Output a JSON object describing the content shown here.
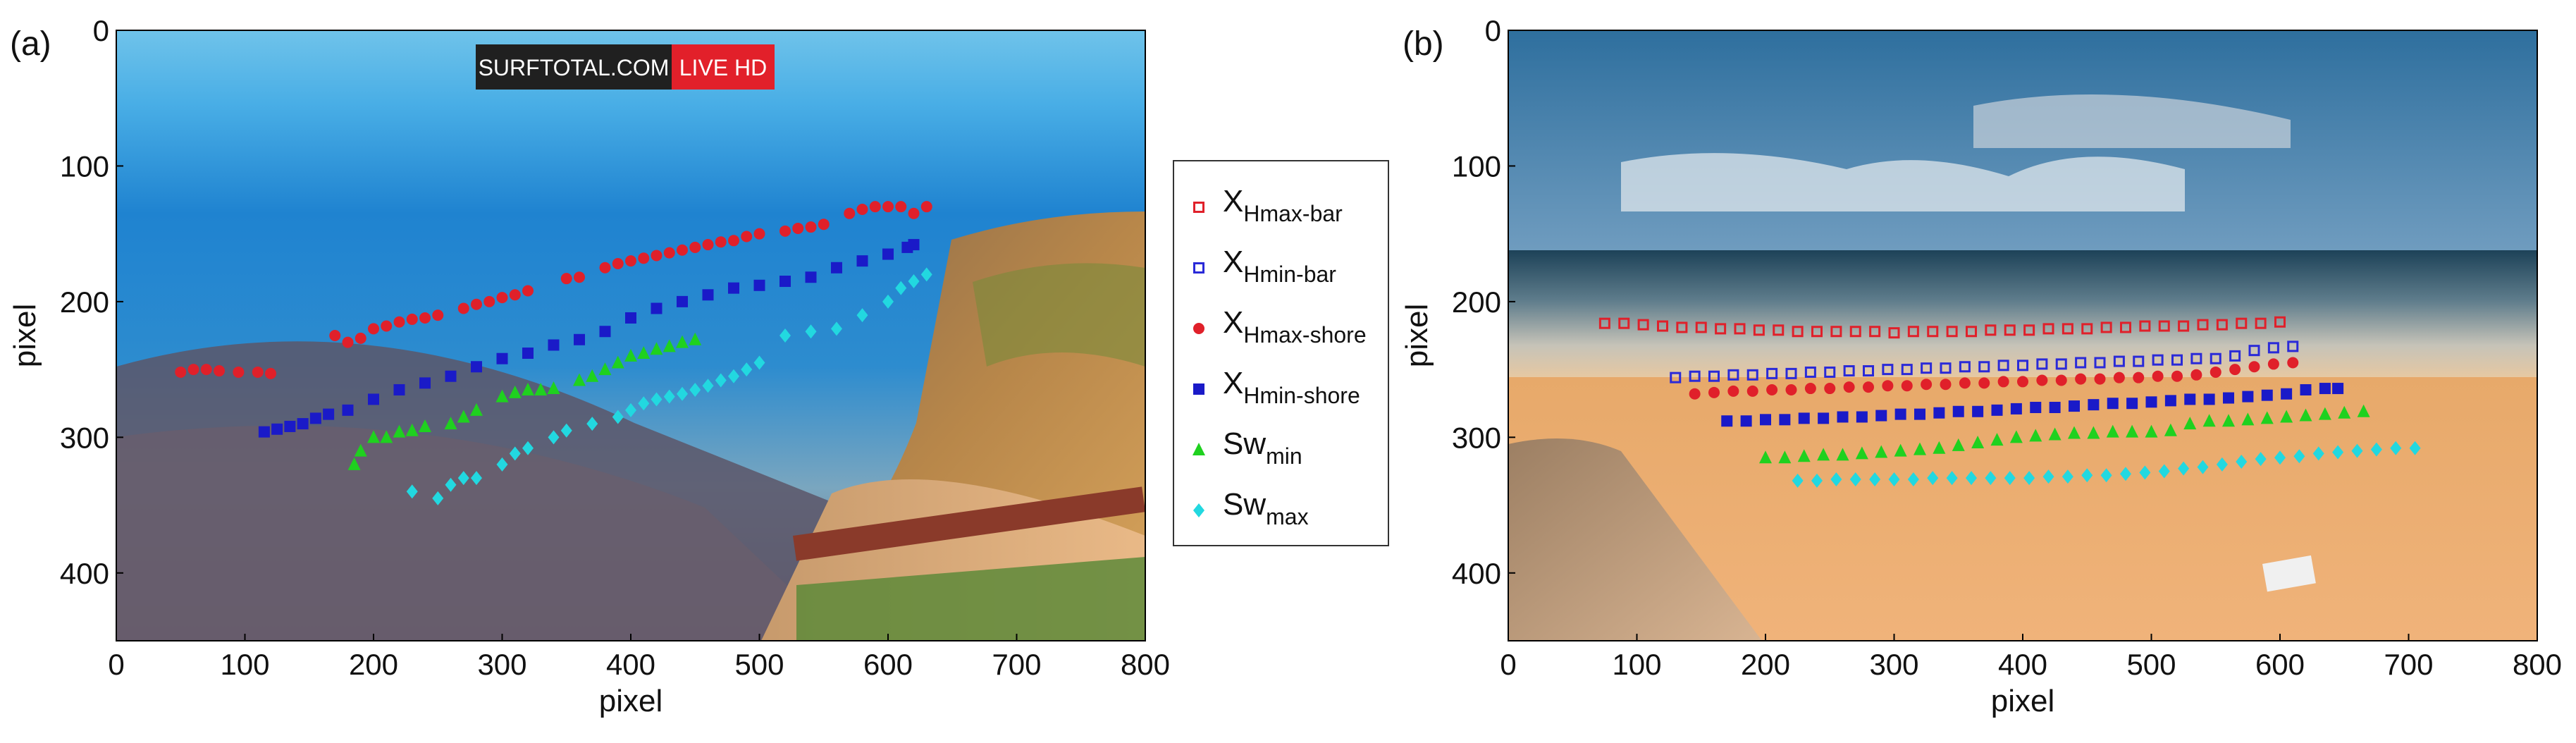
{
  "figure": {
    "panels": [
      "(a)",
      "(b)"
    ],
    "watermark_left": "SURFTOTAL.COM",
    "watermark_right": "LIVE HD"
  },
  "legend": [
    {
      "id": "xhmax_bar",
      "base": "X",
      "sub": "Hmax-bar",
      "marker": "square-open",
      "color": "#e0202a"
    },
    {
      "id": "xhmin_bar",
      "base": "X",
      "sub": "Hmin-bar",
      "marker": "square-open",
      "color": "#2a2ad8"
    },
    {
      "id": "xhmax_shore",
      "base": "X",
      "sub": "Hmax-shore",
      "marker": "circle",
      "color": "#e0202a"
    },
    {
      "id": "xhmin_shore",
      "base": "X",
      "sub": "Hmin-shore",
      "marker": "square",
      "color": "#1a1ac8"
    },
    {
      "id": "sw_min",
      "base": "Sw",
      "sub": "min",
      "marker": "triangle",
      "color": "#1fd11f"
    },
    {
      "id": "sw_max",
      "base": "Sw",
      "sub": "max",
      "marker": "diamond",
      "color": "#22d8e0"
    }
  ],
  "chart_data": [
    {
      "type": "scatter",
      "panel": "(a)",
      "xlabel": "pixel",
      "ylabel": "pixel",
      "xlim": [
        0,
        800
      ],
      "ylim": [
        0,
        450
      ],
      "y_inverted": true,
      "xticks": [
        0,
        100,
        200,
        300,
        400,
        500,
        600,
        700,
        800
      ],
      "yticks": [
        0,
        100,
        200,
        300,
        400
      ],
      "background": "coastal-cliff-camera-image",
      "series": [
        {
          "id": "xhmax_shore",
          "marker": "circle",
          "color": "#e0202a",
          "x": [
            50,
            60,
            70,
            80,
            95,
            110,
            120,
            170,
            180,
            190,
            200,
            210,
            220,
            230,
            240,
            250,
            270,
            280,
            290,
            300,
            310,
            320,
            350,
            360,
            380,
            390,
            400,
            410,
            420,
            430,
            440,
            450,
            460,
            470,
            480,
            490,
            500,
            520,
            530,
            540,
            550,
            570,
            580,
            590,
            600,
            610,
            620,
            630
          ],
          "y": [
            252,
            250,
            250,
            251,
            252,
            252,
            253,
            225,
            230,
            227,
            220,
            218,
            215,
            213,
            212,
            210,
            205,
            202,
            200,
            197,
            195,
            192,
            183,
            182,
            175,
            172,
            170,
            168,
            166,
            164,
            162,
            160,
            158,
            156,
            155,
            152,
            150,
            148,
            146,
            145,
            143,
            135,
            132,
            130,
            130,
            130,
            135,
            130
          ]
        },
        {
          "id": "xhmin_shore",
          "marker": "square",
          "color": "#1a1ac8",
          "x": [
            115,
            125,
            135,
            145,
            155,
            165,
            180,
            200,
            220,
            240,
            260,
            280,
            300,
            320,
            340,
            360,
            380,
            400,
            420,
            440,
            460,
            480,
            500,
            520,
            540,
            560,
            580,
            600,
            615,
            620
          ],
          "y": [
            296,
            294,
            292,
            290,
            286,
            283,
            280,
            272,
            265,
            260,
            255,
            248,
            242,
            238,
            232,
            228,
            222,
            212,
            205,
            200,
            195,
            190,
            188,
            185,
            182,
            175,
            170,
            165,
            160,
            158
          ]
        },
        {
          "id": "sw_min",
          "marker": "triangle",
          "color": "#1fd11f",
          "x": [
            185,
            190,
            200,
            210,
            220,
            230,
            240,
            260,
            270,
            280,
            300,
            310,
            320,
            330,
            340,
            360,
            370,
            380,
            390,
            400,
            410,
            420,
            430,
            440,
            450
          ],
          "y": [
            320,
            310,
            300,
            300,
            296,
            295,
            292,
            290,
            285,
            280,
            270,
            267,
            265,
            265,
            264,
            258,
            255,
            250,
            245,
            240,
            238,
            235,
            233,
            230,
            228
          ]
        },
        {
          "id": "sw_max",
          "marker": "diamond",
          "color": "#22d8e0",
          "x": [
            230,
            250,
            260,
            270,
            280,
            300,
            310,
            320,
            340,
            350,
            370,
            390,
            400,
            410,
            420,
            430,
            440,
            450,
            460,
            470,
            480,
            490,
            500,
            520,
            540,
            560,
            580,
            600,
            610,
            620,
            630
          ],
          "y": [
            340,
            345,
            335,
            330,
            330,
            320,
            312,
            308,
            300,
            295,
            290,
            285,
            280,
            275,
            272,
            270,
            268,
            265,
            262,
            258,
            255,
            250,
            245,
            225,
            222,
            220,
            210,
            200,
            190,
            185,
            180
          ]
        }
      ]
    },
    {
      "type": "scatter",
      "panel": "(b)",
      "xlabel": "pixel",
      "ylabel": "pixel",
      "xlim": [
        0,
        800
      ],
      "ylim": [
        0,
        450
      ],
      "y_inverted": true,
      "xticks": [
        0,
        100,
        200,
        300,
        400,
        500,
        600,
        700,
        800
      ],
      "yticks": [
        0,
        100,
        200,
        300,
        400
      ],
      "background": "beach-camera-image",
      "series": [
        {
          "id": "xhmax_bar",
          "marker": "square-open",
          "color": "#e0202a",
          "x": [
            75,
            90,
            105,
            120,
            135,
            150,
            165,
            180,
            195,
            210,
            225,
            240,
            255,
            270,
            285,
            300,
            315,
            330,
            345,
            360,
            375,
            390,
            405,
            420,
            435,
            450,
            465,
            480,
            495,
            510,
            525,
            540,
            555,
            570,
            585,
            600
          ],
          "y": [
            216,
            216,
            217,
            218,
            219,
            219,
            220,
            220,
            221,
            221,
            222,
            222,
            222,
            222,
            222,
            223,
            222,
            222,
            222,
            222,
            221,
            221,
            221,
            220,
            220,
            220,
            219,
            219,
            218,
            218,
            218,
            217,
            217,
            216,
            216,
            215
          ]
        },
        {
          "id": "xhmin_bar",
          "marker": "square-open",
          "color": "#2a2ad8",
          "x": [
            130,
            145,
            160,
            175,
            190,
            205,
            220,
            235,
            250,
            265,
            280,
            295,
            310,
            325,
            340,
            355,
            370,
            385,
            400,
            415,
            430,
            445,
            460,
            475,
            490,
            505,
            520,
            535,
            550,
            565,
            580,
            595,
            610
          ],
          "y": [
            256,
            255,
            255,
            254,
            254,
            253,
            253,
            252,
            252,
            251,
            251,
            250,
            250,
            249,
            249,
            248,
            248,
            247,
            247,
            246,
            246,
            245,
            245,
            244,
            244,
            243,
            243,
            242,
            242,
            240,
            236,
            234,
            233
          ]
        },
        {
          "id": "xhmax_shore",
          "marker": "circle",
          "color": "#e0202a",
          "x": [
            145,
            160,
            175,
            190,
            205,
            220,
            235,
            250,
            265,
            280,
            295,
            310,
            325,
            340,
            355,
            370,
            385,
            400,
            415,
            430,
            445,
            460,
            475,
            490,
            505,
            520,
            535,
            550,
            565,
            580,
            595,
            610
          ],
          "y": [
            268,
            267,
            266,
            266,
            265,
            265,
            264,
            264,
            263,
            263,
            262,
            262,
            261,
            261,
            260,
            260,
            259,
            259,
            258,
            258,
            257,
            257,
            256,
            256,
            255,
            255,
            254,
            252,
            250,
            248,
            246,
            245
          ]
        },
        {
          "id": "xhmin_shore",
          "marker": "square",
          "color": "#1a1ac8",
          "x": [
            170,
            185,
            200,
            215,
            230,
            245,
            260,
            275,
            290,
            305,
            320,
            335,
            350,
            365,
            380,
            395,
            410,
            425,
            440,
            455,
            470,
            485,
            500,
            515,
            530,
            545,
            560,
            575,
            590,
            605,
            620,
            635,
            645
          ],
          "y": [
            288,
            288,
            287,
            287,
            286,
            286,
            285,
            285,
            284,
            283,
            283,
            282,
            281,
            281,
            280,
            279,
            278,
            278,
            277,
            276,
            275,
            275,
            274,
            273,
            272,
            272,
            271,
            270,
            269,
            268,
            265,
            264,
            264
          ]
        },
        {
          "id": "sw_min",
          "marker": "triangle",
          "color": "#1fd11f",
          "x": [
            200,
            215,
            230,
            245,
            260,
            275,
            290,
            305,
            320,
            335,
            350,
            365,
            380,
            395,
            410,
            425,
            440,
            455,
            470,
            485,
            500,
            515,
            530,
            545,
            560,
            575,
            590,
            605,
            620,
            635,
            650,
            665
          ],
          "y": [
            315,
            315,
            314,
            313,
            313,
            312,
            311,
            310,
            309,
            308,
            306,
            304,
            302,
            300,
            299,
            298,
            297,
            297,
            296,
            296,
            296,
            295,
            290,
            288,
            288,
            287,
            286,
            285,
            284,
            283,
            282,
            281
          ]
        },
        {
          "id": "sw_max",
          "marker": "diamond",
          "color": "#22d8e0",
          "x": [
            225,
            240,
            255,
            270,
            285,
            300,
            315,
            330,
            345,
            360,
            375,
            390,
            405,
            420,
            435,
            450,
            465,
            480,
            495,
            510,
            525,
            540,
            555,
            570,
            585,
            600,
            615,
            630,
            645,
            660,
            675,
            690,
            705
          ],
          "y": [
            332,
            332,
            331,
            331,
            331,
            331,
            331,
            330,
            330,
            330,
            330,
            330,
            330,
            329,
            329,
            328,
            328,
            327,
            326,
            325,
            323,
            322,
            320,
            318,
            316,
            315,
            314,
            312,
            311,
            310,
            309,
            308,
            308
          ]
        }
      ]
    }
  ]
}
